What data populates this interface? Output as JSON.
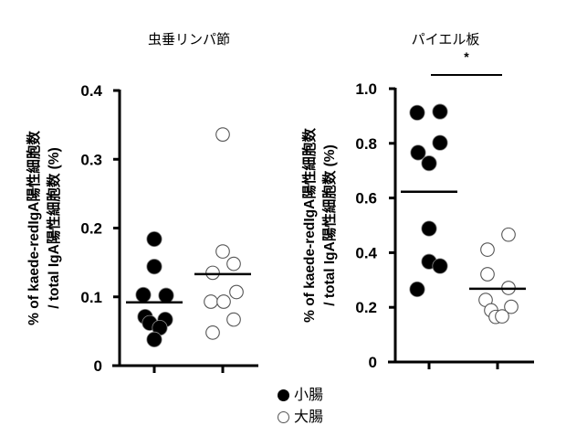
{
  "legend": {
    "items": [
      {
        "label": "小腸",
        "marker": "filled-circle",
        "color": "#000000"
      },
      {
        "label": "大腸",
        "marker": "open-circle",
        "color": "#ffffff"
      }
    ]
  },
  "chart_data": [
    {
      "type": "scatter",
      "title": "虫垂リンパ節",
      "ylabel": "% of kaede-redIgA陽性細胞数 / total IgA陽性細胞数 (%)",
      "ylabel_lines": [
        "% of kaede-redIgA陽性細胞数",
        "/ total IgA陽性細胞数 (%)"
      ],
      "xlabel": "",
      "ylim": [
        0,
        0.4
      ],
      "yticks": [
        "0",
        "0.1",
        "0.2",
        "0.3",
        "0.4"
      ],
      "ytick_values": [
        0,
        0.1,
        0.2,
        0.3,
        0.4
      ],
      "grid": false,
      "series": [
        {
          "name": "小腸",
          "marker": "filled",
          "mean": 0.092,
          "values": [
            0.184,
            0.144,
            0.103,
            0.102,
            0.071,
            0.067,
            0.062,
            0.055,
            0.038
          ],
          "jitter": [
            0,
            0,
            -12,
            13,
            -10,
            12,
            -5,
            6,
            0
          ]
        },
        {
          "name": "大腸",
          "marker": "open",
          "mean": 0.133,
          "values": [
            0.336,
            0.166,
            0.148,
            0.135,
            0.107,
            0.093,
            0.093,
            0.067,
            0.048
          ],
          "jitter": [
            0,
            0,
            12,
            -11,
            15,
            -13,
            1,
            12,
            -11
          ]
        }
      ],
      "significance": null
    },
    {
      "type": "scatter",
      "title": "パイエル板",
      "ylabel": "% of kaede-redIgA陽性細胞数 / total IgA陽性細胞数 (%)",
      "ylabel_lines": [
        "% of kaede-redIgA陽性細胞数",
        "/ total IgA陽性細胞数 (%)"
      ],
      "xlabel": "",
      "ylim": [
        0,
        1.0
      ],
      "yticks": [
        "0",
        "0.2",
        "0.4",
        "0.6",
        "0.8",
        "1.0"
      ],
      "ytick_values": [
        0,
        0.2,
        0.4,
        0.6,
        0.8,
        1.0
      ],
      "grid": false,
      "series": [
        {
          "name": "小腸",
          "marker": "filled",
          "mean": 0.623,
          "values": [
            0.912,
            0.916,
            0.802,
            0.766,
            0.727,
            0.488,
            0.367,
            0.351,
            0.266
          ],
          "jitter": [
            -13,
            12,
            12,
            -12,
            0,
            0,
            0,
            12,
            -13
          ]
        },
        {
          "name": "大腸",
          "marker": "open",
          "mean": 0.268,
          "values": [
            0.466,
            0.411,
            0.321,
            0.271,
            0.227,
            0.202,
            0.189,
            0.165,
            0.167
          ],
          "jitter": [
            12,
            -11,
            -11,
            12,
            -13,
            15,
            -7,
            -2,
            5
          ]
        }
      ],
      "significance": {
        "label": "*",
        "between": [
          "小腸",
          "大腸"
        ]
      }
    }
  ]
}
